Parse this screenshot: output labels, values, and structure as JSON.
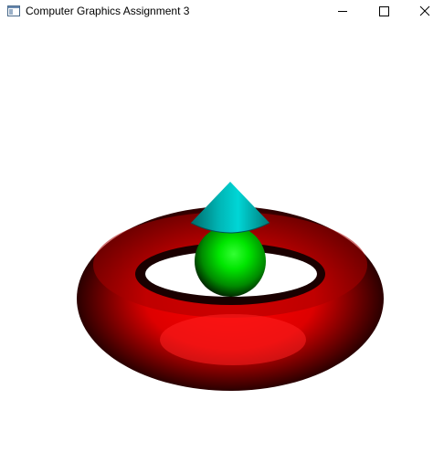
{
  "window": {
    "title": "Computer Graphics Assignment 3",
    "icon": "app-window-icon"
  },
  "controls": {
    "minimize_icon": "minimize-icon",
    "maximize_icon": "maximize-icon",
    "close_icon": "close-icon"
  },
  "scene": {
    "background_color": "#ffffff",
    "objects": [
      {
        "kind": "torus",
        "color": "#ff0000"
      },
      {
        "kind": "sphere",
        "color": "#00ff00"
      },
      {
        "kind": "cone",
        "color": "#00c8c8"
      }
    ]
  }
}
